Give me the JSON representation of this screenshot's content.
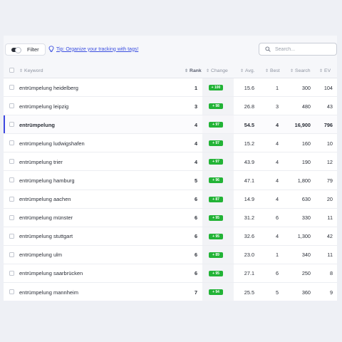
{
  "toolbar": {
    "filter_label": "Filter",
    "tip_text": "Tip: Organize your tracking with tags!",
    "search_placeholder": "Search..."
  },
  "columns": {
    "keyword": "Keyword",
    "rank": "Rank",
    "change": "Change",
    "avg": "Avg.",
    "best": "Best",
    "search": "Search",
    "ev": "EV"
  },
  "colors": {
    "accent": "#3d47e0",
    "badge_green": "#22b336",
    "link": "#3a4ee0"
  },
  "rows": [
    {
      "keyword": "entrümpelung heidelberg",
      "rank": "1",
      "change": "+ 100",
      "avg": "15.6",
      "best": "1",
      "search": "300",
      "ev": "104"
    },
    {
      "keyword": "entrümpelung leipzig",
      "rank": "3",
      "change": "+ 98",
      "avg": "26.8",
      "best": "3",
      "search": "480",
      "ev": "43"
    },
    {
      "keyword": "entrümpelung",
      "rank": "4",
      "change": "+ 97",
      "avg": "54.5",
      "best": "4",
      "search": "16,900",
      "ev": "796"
    },
    {
      "keyword": "entrümpelung ludwigshafen",
      "rank": "4",
      "change": "+ 97",
      "avg": "15.2",
      "best": "4",
      "search": "160",
      "ev": "10"
    },
    {
      "keyword": "entrümpelung trier",
      "rank": "4",
      "change": "+ 97",
      "avg": "43.9",
      "best": "4",
      "search": "190",
      "ev": "12"
    },
    {
      "keyword": "entrümpelung hamburg",
      "rank": "5",
      "change": "+ 96",
      "avg": "47.1",
      "best": "4",
      "search": "1,800",
      "ev": "79"
    },
    {
      "keyword": "entrümpelung aachen",
      "rank": "6",
      "change": "+ 87",
      "avg": "14.9",
      "best": "4",
      "search": "630",
      "ev": "20"
    },
    {
      "keyword": "entrümpelung münster",
      "rank": "6",
      "change": "+ 95",
      "avg": "31.2",
      "best": "6",
      "search": "330",
      "ev": "11"
    },
    {
      "keyword": "entrümpelung stuttgart",
      "rank": "6",
      "change": "+ 95",
      "avg": "32.6",
      "best": "4",
      "search": "1,300",
      "ev": "42"
    },
    {
      "keyword": "entrümpelung ulm",
      "rank": "6",
      "change": "+ 89",
      "avg": "23.0",
      "best": "1",
      "search": "340",
      "ev": "11"
    },
    {
      "keyword": "entrümpelung saarbrücken",
      "rank": "6",
      "change": "+ 95",
      "avg": "27.1",
      "best": "6",
      "search": "250",
      "ev": "8"
    },
    {
      "keyword": "entrümpelung mannheim",
      "rank": "7",
      "change": "+ 94",
      "avg": "25.5",
      "best": "5",
      "search": "360",
      "ev": "9"
    }
  ]
}
